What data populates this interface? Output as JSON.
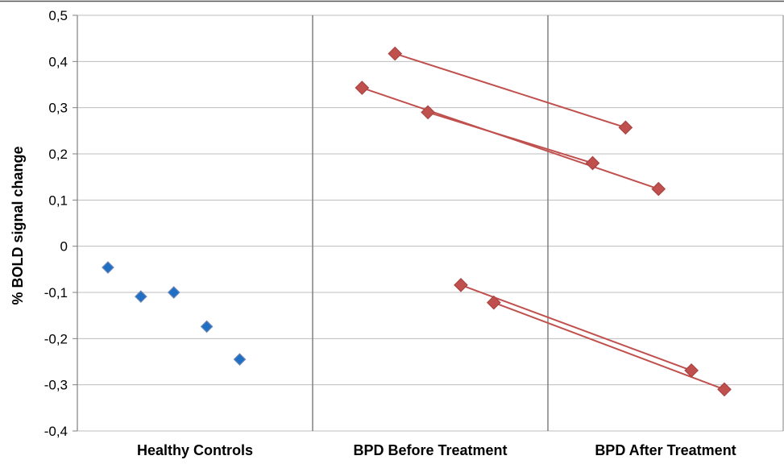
{
  "chart_data": {
    "type": "scatter",
    "title": "",
    "xlabel": "",
    "ylabel": "% BOLD signal change",
    "ylim": [
      -0.4,
      0.5
    ],
    "yticks": [
      0.5,
      0.4,
      0.3,
      0.2,
      0.1,
      0,
      -0.1,
      -0.2,
      -0.3,
      -0.4
    ],
    "ytick_labels": [
      "0,5",
      "0,4",
      "0,3",
      "0,2",
      "0,1",
      "0",
      "-0,1",
      "-0,2",
      "-0,3",
      "-0,4"
    ],
    "grid": "horizontal",
    "categories": [
      "Healthy Controls",
      "BPD Before Treatment",
      "BPD After Treatment"
    ],
    "healthy_controls": {
      "color": "#1f6fc4",
      "edge_color": "#6b87b5",
      "points": [
        {
          "x": 0.13,
          "y": -0.046
        },
        {
          "x": 0.27,
          "y": -0.109
        },
        {
          "x": 0.41,
          "y": -0.1
        },
        {
          "x": 0.55,
          "y": -0.174
        },
        {
          "x": 0.69,
          "y": -0.245
        }
      ]
    },
    "bpd_patients": {
      "color": "#c0504d",
      "line_color": "#c0504d",
      "pairs": [
        {
          "before": {
            "x": 1.35,
            "y": 0.417
          },
          "after": {
            "x": 2.33,
            "y": 0.257
          }
        },
        {
          "before": {
            "x": 1.21,
            "y": 0.343
          },
          "after": {
            "x": 2.47,
            "y": 0.124
          }
        },
        {
          "before": {
            "x": 1.49,
            "y": 0.29
          },
          "after": {
            "x": 2.19,
            "y": 0.18
          }
        },
        {
          "before": {
            "x": 1.63,
            "y": -0.084
          },
          "after": {
            "x": 2.61,
            "y": -0.269
          }
        },
        {
          "before": {
            "x": 1.77,
            "y": -0.122
          },
          "after": {
            "x": 2.75,
            "y": -0.31
          }
        }
      ]
    }
  }
}
